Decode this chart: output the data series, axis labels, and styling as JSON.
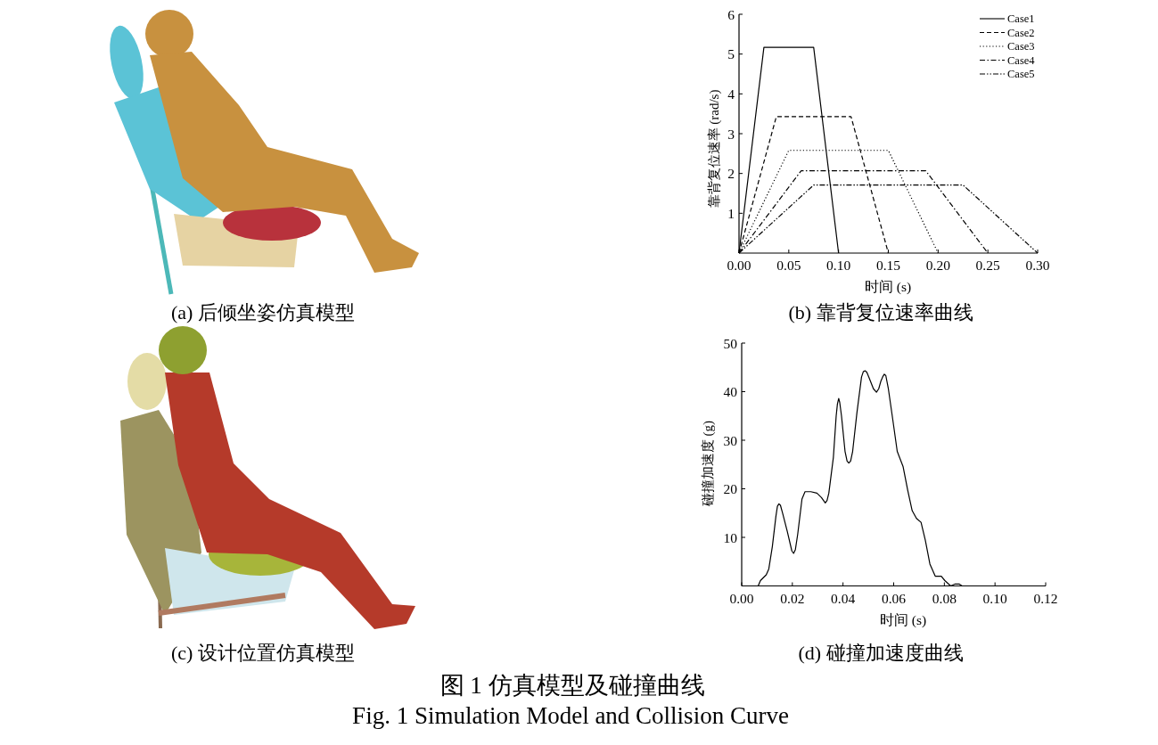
{
  "chart_data": [
    {
      "type": "line",
      "title": "(b) 靠背复位速率曲线",
      "xlabel": "时间 (s)",
      "ylabel": "靠背复位速率 (rad/s)",
      "xlim": [
        0,
        0.3
      ],
      "ylim": [
        0,
        6
      ],
      "xticks": [
        {
          "value": 0,
          "label": "0.00"
        },
        {
          "value": 0.05,
          "label": "0.05"
        },
        {
          "value": 0.1,
          "label": "0.10"
        },
        {
          "value": 0.15,
          "label": "0.15"
        },
        {
          "value": 0.2,
          "label": "0.20"
        },
        {
          "value": 0.25,
          "label": "0.25"
        },
        {
          "value": 0.3,
          "label": "0.30"
        }
      ],
      "yticks": [
        1,
        2,
        3,
        4,
        5,
        6
      ],
      "legend": "top right",
      "series": [
        {
          "name": "Case1",
          "color": "#000000",
          "line_style": "solid",
          "x": [
            0,
            0.025,
            0.075,
            0.1
          ],
          "values": [
            0,
            5.17,
            5.17,
            0
          ]
        },
        {
          "name": "Case2",
          "color": "#000000",
          "line_style": "dashed",
          "x": [
            0,
            0.0375,
            0.1125,
            0.15
          ],
          "values": [
            0,
            3.43,
            3.43,
            0
          ]
        },
        {
          "name": "Case3",
          "color": "#000000",
          "line_style": "dotted",
          "x": [
            0,
            0.05,
            0.15,
            0.2
          ],
          "values": [
            0,
            2.58,
            2.58,
            0
          ]
        },
        {
          "name": "Case4",
          "color": "#000000",
          "line_style": "dashdot",
          "x": [
            0,
            0.0625,
            0.1875,
            0.25
          ],
          "values": [
            0,
            2.07,
            2.07,
            0
          ]
        },
        {
          "name": "Case5",
          "color": "#000000",
          "line_style": "dashdotdot",
          "x": [
            0,
            0.075,
            0.225,
            0.3
          ],
          "values": [
            0,
            1.71,
            1.71,
            0
          ]
        }
      ]
    },
    {
      "type": "line",
      "title": "(d) 碰撞加速度曲线",
      "xlabel": "时间 (s)",
      "ylabel": "碰撞加速度 (g)",
      "xlim": [
        0,
        0.12
      ],
      "ylim": [
        0,
        50
      ],
      "xticks": [
        {
          "value": 0,
          "label": "0.00"
        },
        {
          "value": 0.02,
          "label": "0.02"
        },
        {
          "value": 0.04,
          "label": "0.04"
        },
        {
          "value": 0.06,
          "label": "0.06"
        },
        {
          "value": 0.08,
          "label": "0.08"
        },
        {
          "value": 0.1,
          "label": "0.10"
        },
        {
          "value": 0.12,
          "label": "0.12"
        }
      ],
      "yticks": [
        10,
        20,
        30,
        40,
        50
      ],
      "color": "#000000",
      "x": [
        0.0065,
        0.0074,
        0.0097,
        0.0107,
        0.0121,
        0.0135,
        0.0141,
        0.0147,
        0.0153,
        0.0162,
        0.018,
        0.0198,
        0.0205,
        0.0212,
        0.0221,
        0.0238,
        0.025,
        0.0273,
        0.0297,
        0.0315,
        0.0323,
        0.033,
        0.0337,
        0.0344,
        0.0362,
        0.0373,
        0.0378,
        0.0383,
        0.0387,
        0.0394,
        0.0408,
        0.0416,
        0.0423,
        0.043,
        0.0438,
        0.0455,
        0.0473,
        0.048,
        0.0487,
        0.0494,
        0.0502,
        0.052,
        0.0532,
        0.0541,
        0.0549,
        0.0558,
        0.0563,
        0.0569,
        0.0579,
        0.0596,
        0.0614,
        0.0637,
        0.0655,
        0.0673,
        0.069,
        0.0708,
        0.0725,
        0.0743,
        0.0764,
        0.0788,
        0.0802,
        0.0825,
        0.0843,
        0.0858,
        0.087
      ],
      "values": [
        0,
        1.1,
        2.3,
        3.5,
        8.1,
        14.3,
        16.4,
        16.9,
        16.6,
        14.9,
        11.2,
        7.2,
        6.7,
        7.5,
        10.6,
        17.9,
        19.4,
        19.4,
        19.1,
        18.2,
        17.6,
        17.1,
        17.6,
        19.1,
        26.5,
        35.0,
        37.5,
        38.6,
        37.8,
        35.0,
        27.7,
        25.7,
        25.3,
        25.7,
        27.7,
        35.7,
        43.0,
        44.1,
        44.3,
        44.0,
        43.0,
        40.6,
        39.9,
        40.6,
        42.1,
        43.2,
        43.6,
        43.3,
        40.6,
        34.4,
        27.7,
        24.6,
        19.8,
        15.5,
        13.9,
        13.1,
        9.4,
        4.5,
        2.0,
        2.0,
        1.1,
        0,
        0.4,
        0.4,
        0
      ]
    },
    {
      "type": "other",
      "title": "图 1  仿真模型及碰撞曲线",
      "subtitle": "Fig. 1 Simulation Model and Collision Curve",
      "annotations": [
        "(a) 后倾坐姿仿真模型",
        "(c) 设计位置仿真模型"
      ]
    }
  ]
}
